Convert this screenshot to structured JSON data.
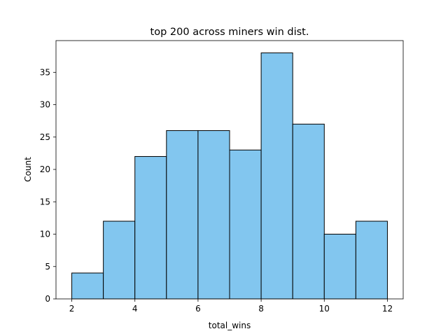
{
  "chart_data": {
    "type": "bar",
    "title": "top 200 across miners win dist.",
    "xlabel": "total_wins",
    "ylabel": "Count",
    "bins": [
      {
        "start": 2,
        "end": 3,
        "count": 4
      },
      {
        "start": 3,
        "end": 4,
        "count": 12
      },
      {
        "start": 4,
        "end": 5,
        "count": 22
      },
      {
        "start": 5,
        "end": 6,
        "count": 26
      },
      {
        "start": 6,
        "end": 7,
        "count": 26
      },
      {
        "start": 7,
        "end": 8,
        "count": 23
      },
      {
        "start": 8,
        "end": 9,
        "count": 38
      },
      {
        "start": 9,
        "end": 10,
        "count": 27
      },
      {
        "start": 10,
        "end": 11,
        "count": 10
      },
      {
        "start": 11,
        "end": 12,
        "count": 12
      }
    ],
    "xlim": [
      1.5,
      12.5
    ],
    "ylim": [
      0,
      39.9
    ],
    "x_ticks": [
      2,
      4,
      6,
      8,
      10,
      12
    ],
    "y_ticks": [
      0,
      5,
      10,
      15,
      20,
      25,
      30,
      35
    ],
    "bar_color": "#82c6ef",
    "edge_color": "#000000",
    "grid": false,
    "legend": "none"
  }
}
